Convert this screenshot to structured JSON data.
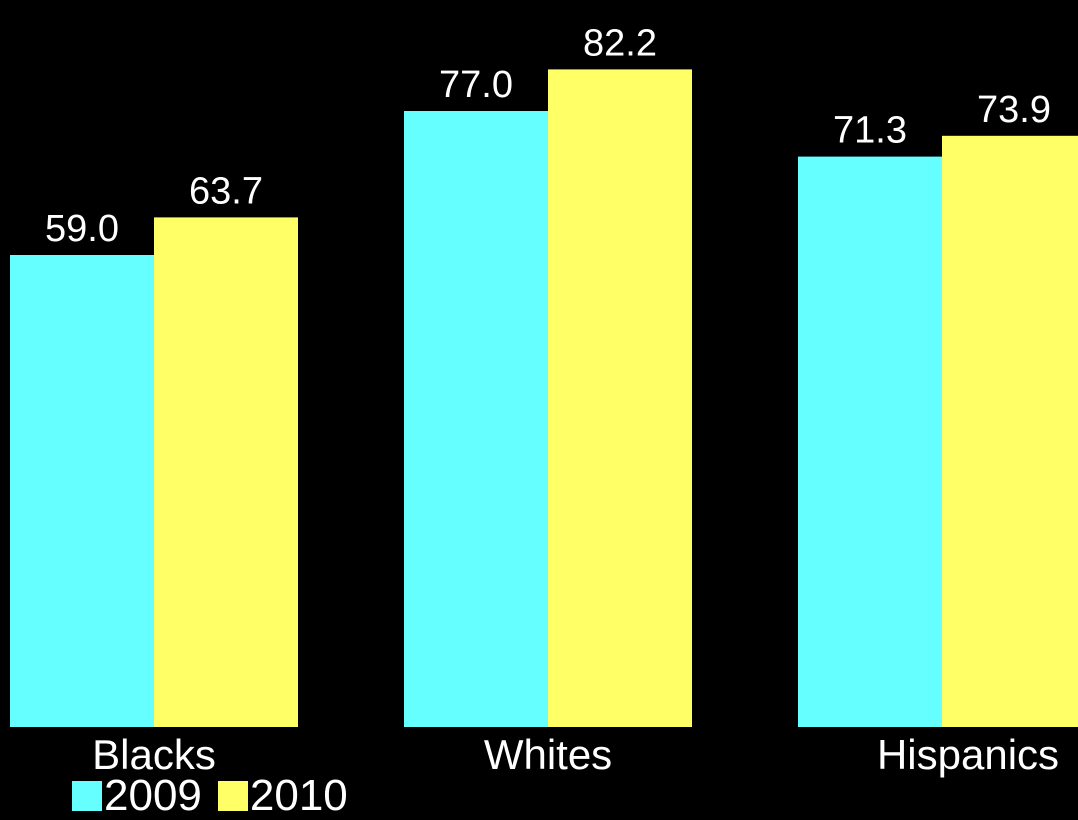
{
  "chart_data": {
    "type": "bar",
    "categories": [
      "Blacks",
      "Whites",
      "Hispanics"
    ],
    "series": [
      {
        "name": "2009",
        "color": "#66FFFF",
        "values": [
          59.0,
          77.0,
          71.3
        ],
        "labels": [
          "59.0",
          "77.0",
          "71.3"
        ]
      },
      {
        "name": "2010",
        "color": "#FFFF66",
        "values": [
          63.7,
          82.2,
          73.9
        ],
        "labels": [
          "63.7",
          "82.2",
          "73.9"
        ]
      }
    ],
    "title": "",
    "xlabel": "",
    "ylabel": "",
    "ylim": [
      0,
      100
    ],
    "grid": false,
    "legend_position": "bottom-left",
    "background": "#000000"
  }
}
